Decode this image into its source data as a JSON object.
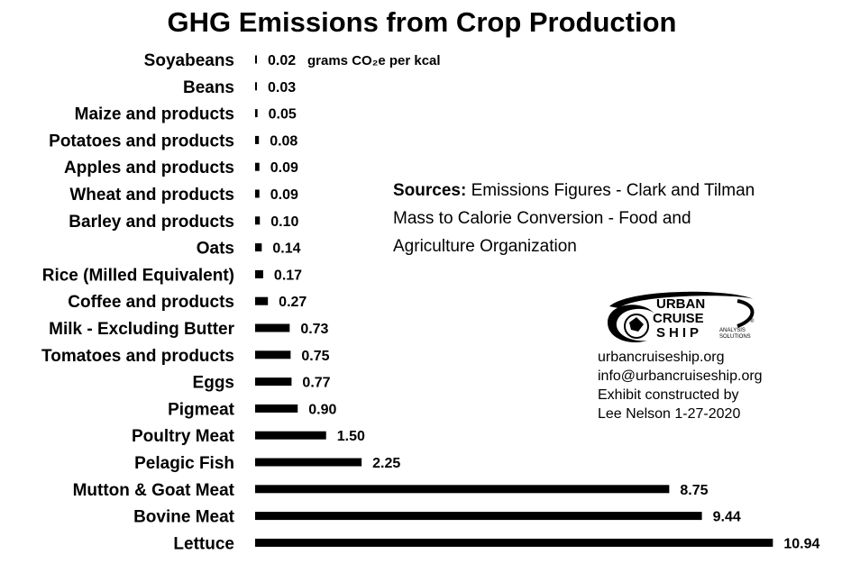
{
  "chart_data": {
    "type": "bar",
    "title": "GHG Emissions from Crop Production",
    "categories": [
      "Soyabeans",
      "Beans",
      "Maize and products",
      "Potatoes and products",
      "Apples and products",
      "Wheat and products",
      "Barley and products",
      "Oats",
      "Rice (Milled Equivalent)",
      "Coffee and products",
      "Milk - Excluding Butter",
      "Tomatoes and products",
      "Eggs",
      "Pigmeat",
      "Poultry Meat",
      "Pelagic Fish",
      "Mutton & Goat Meat",
      "Bovine Meat",
      "Lettuce"
    ],
    "values": [
      0.02,
      0.03,
      0.05,
      0.08,
      0.09,
      0.09,
      0.1,
      0.14,
      0.17,
      0.27,
      0.73,
      0.75,
      0.77,
      0.9,
      1.5,
      2.25,
      8.75,
      9.44,
      10.94
    ],
    "value_labels": [
      "0.02",
      "0.03",
      "0.05",
      "0.08",
      "0.09",
      "0.09",
      "0.10",
      "0.14",
      "0.17",
      "0.27",
      "0.73",
      "0.75",
      "0.77",
      "0.90",
      "1.50",
      "2.25",
      "8.75",
      "9.44",
      "10.94"
    ],
    "unit_label": "grams CO₂e per kcal",
    "orientation": "horizontal",
    "bar_color": "#000000",
    "grid": false,
    "legend": "none"
  },
  "sources": {
    "heading": "Sources:",
    "line1_rest": "Emissions Figures - Clark and Tilman",
    "line2": "Mass to Calorie Conversion - Food and",
    "line3": "Agriculture Organization"
  },
  "logo": {
    "line1": "URBAN",
    "line2": "CRUISE",
    "line3": "SHIP",
    "sub1": "ANALYSIS",
    "sub2": "SOLUTIONS",
    "registered": "®"
  },
  "contact": {
    "website": "urbancruiseship.org",
    "email": "info@urbancruiseship.org",
    "credit1": "Exhibit constructed by",
    "credit2": "Lee Nelson 1-27-2020"
  }
}
